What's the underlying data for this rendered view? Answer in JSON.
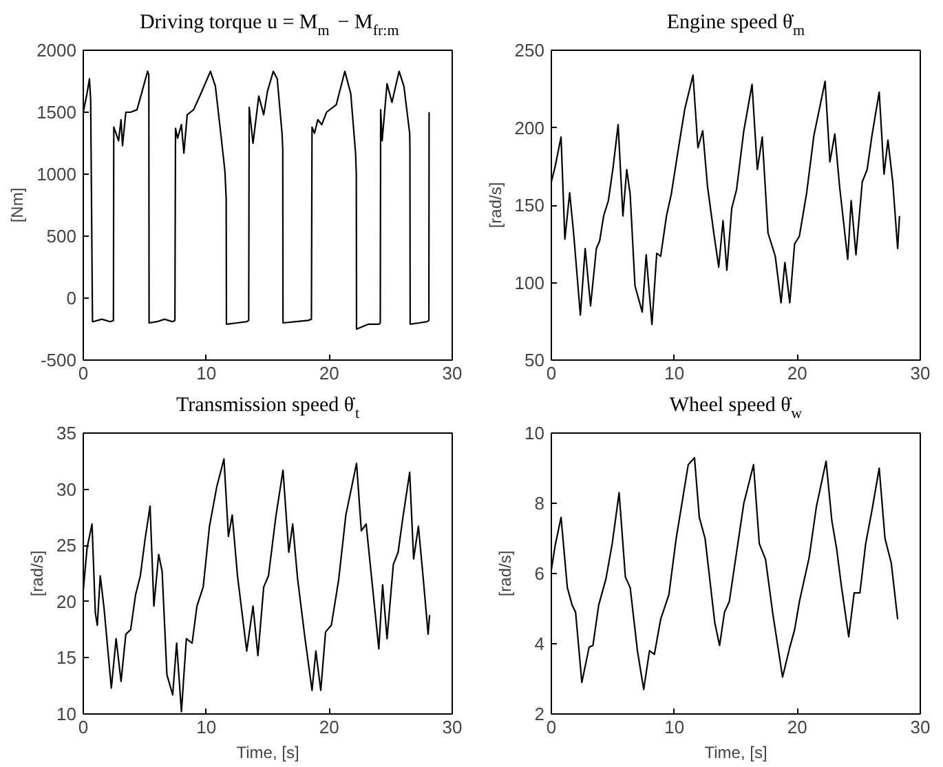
{
  "chart_data": [
    {
      "type": "line",
      "title": "Driving torque u = M$_{m}$ − M$_{fr:m}$",
      "ylabel": "[Nm]",
      "color": "#000000",
      "xlim": [
        0,
        30
      ],
      "ylim": [
        -500,
        2000
      ],
      "xticks": [
        0,
        10,
        20,
        30
      ],
      "yticks": [
        -500,
        0,
        500,
        1000,
        1500,
        2000
      ],
      "x": [
        0,
        0.3,
        0.5,
        0.6,
        0.75,
        0.8,
        1.5,
        2.2,
        2.45,
        2.48,
        2.87,
        3.07,
        3.19,
        3.46,
        3.85,
        4.37,
        5.23,
        5.33,
        5.35,
        6.0,
        6.6,
        7.27,
        7.45,
        7.5,
        7.67,
        7.98,
        8.18,
        8.45,
        8.97,
        9.56,
        10.34,
        10.74,
        11.2,
        11.52,
        11.62,
        11.64,
        12.5,
        13.3,
        13.45,
        13.49,
        13.8,
        14.27,
        14.67,
        14.98,
        15.45,
        15.77,
        16.16,
        16.22,
        16.24,
        17.3,
        18.29,
        18.55,
        18.6,
        18.8,
        19.07,
        19.39,
        19.78,
        20.57,
        21.27,
        21.75,
        22.14,
        22.2,
        22.22,
        23.2,
        24.03,
        24.15,
        24.18,
        24.3,
        24.7,
        25.1,
        25.68,
        26.07,
        26.54,
        26.56,
        26.58,
        27.3,
        27.96,
        28.1,
        28.12
      ],
      "values": [
        1500,
        1650,
        1770,
        1600,
        -190,
        -190,
        -170,
        -190,
        -180,
        1380,
        1270,
        1440,
        1230,
        1500,
        1500,
        1520,
        1830,
        1800,
        -200,
        -190,
        -170,
        -190,
        -180,
        1370,
        1290,
        1400,
        1170,
        1480,
        1520,
        1650,
        1830,
        1710,
        1310,
        1020,
        800,
        -210,
        -200,
        -190,
        -180,
        1540,
        1250,
        1630,
        1480,
        1670,
        1830,
        1770,
        1330,
        1200,
        -200,
        -190,
        -180,
        -170,
        1380,
        1330,
        1440,
        1400,
        1500,
        1560,
        1830,
        1650,
        1170,
        1000,
        -250,
        -210,
        -210,
        -200,
        1520,
        1270,
        1730,
        1580,
        1830,
        1710,
        1330,
        1200,
        -210,
        -200,
        -190,
        -180,
        1500
      ]
    },
    {
      "type": "line",
      "title": "Engine speed θ̇$_{m}$",
      "ylabel": "[rad/s]",
      "color": "#000000",
      "xlim": [
        0,
        30
      ],
      "ylim": [
        50,
        250
      ],
      "xticks": [
        0,
        10,
        20,
        30
      ],
      "yticks": [
        50,
        100,
        150,
        200,
        250
      ],
      "x": [
        0,
        0.31,
        0.79,
        1.1,
        1.49,
        1.81,
        2.36,
        2.75,
        3.19,
        3.66,
        3.93,
        4.25,
        4.64,
        5.03,
        5.43,
        5.82,
        6.13,
        6.41,
        6.8,
        7.39,
        7.71,
        8.18,
        8.57,
        8.89,
        9.36,
        9.75,
        10.34,
        10.85,
        11.52,
        11.92,
        12.31,
        12.7,
        13.21,
        13.61,
        13.96,
        14.27,
        14.67,
        15.06,
        15.65,
        16.32,
        16.75,
        17.15,
        17.62,
        18.21,
        18.68,
        18.99,
        19.39,
        19.78,
        20.17,
        20.76,
        21.35,
        22.26,
        22.65,
        23.05,
        23.44,
        24.1,
        24.38,
        24.77,
        25.28,
        25.68,
        26.07,
        26.66,
        27.05,
        27.37,
        27.76,
        28.16,
        28.31
      ],
      "values": [
        165,
        175,
        194,
        128,
        158,
        132,
        79,
        122,
        85,
        122,
        127,
        143,
        153,
        175,
        202,
        143,
        173,
        157,
        98,
        81,
        118,
        73,
        119,
        117,
        143,
        157,
        187,
        212,
        234,
        187,
        198,
        162,
        132,
        110,
        140,
        108,
        148,
        160,
        198,
        228,
        173,
        194,
        132,
        117,
        87,
        113,
        87,
        125,
        130,
        158,
        195,
        230,
        178,
        196,
        162,
        115,
        153,
        118,
        165,
        173,
        195,
        223,
        170,
        192,
        165,
        122,
        143
      ]
    },
    {
      "type": "line",
      "title": "Transmission speed θ̇$_{t}$",
      "ylabel": "[rad/s]",
      "xlabel": "Time, [s]",
      "color": "#000000",
      "xlim": [
        0,
        30
      ],
      "ylim": [
        10,
        35
      ],
      "xticks": [
        0,
        10,
        20,
        30
      ],
      "yticks": [
        10,
        15,
        20,
        25,
        30,
        35
      ],
      "x": [
        0,
        0.31,
        0.71,
        0.98,
        1.14,
        1.38,
        1.69,
        2.28,
        2.67,
        3.07,
        3.46,
        3.85,
        4.25,
        4.64,
        5.03,
        5.43,
        5.74,
        6.13,
        6.41,
        6.8,
        7.27,
        7.59,
        7.98,
        8.38,
        8.85,
        9.24,
        9.75,
        10.26,
        10.85,
        11.44,
        11.8,
        12.11,
        12.54,
        13.29,
        13.8,
        14.2,
        14.67,
        15.06,
        15.65,
        16.24,
        16.71,
        17.03,
        17.42,
        18.01,
        18.6,
        18.91,
        19.31,
        19.7,
        20.17,
        20.76,
        21.35,
        22.22,
        22.61,
        23.0,
        23.52,
        24.03,
        24.34,
        24.7,
        25.21,
        25.6,
        25.99,
        26.54,
        26.86,
        27.25,
        27.64,
        28.04,
        28.16
      ],
      "values": [
        21.0,
        24.8,
        26.9,
        19.0,
        17.9,
        22.3,
        19.4,
        12.3,
        16.7,
        12.9,
        17.1,
        17.5,
        20.6,
        22.3,
        25.6,
        28.5,
        19.6,
        24.2,
        22.7,
        13.5,
        11.7,
        16.3,
        10.2,
        16.7,
        16.3,
        19.6,
        21.3,
        26.7,
        30.2,
        32.7,
        25.8,
        27.7,
        22.3,
        15.6,
        19.6,
        15.2,
        21.3,
        22.3,
        27.5,
        31.7,
        24.4,
        26.9,
        22.1,
        16.9,
        12.1,
        15.6,
        12.1,
        17.3,
        17.9,
        21.9,
        27.7,
        32.3,
        26.3,
        26.9,
        21.3,
        15.8,
        21.5,
        16.7,
        23.3,
        24.4,
        27.5,
        31.5,
        23.8,
        26.7,
        22.1,
        17.1,
        18.8
      ]
    },
    {
      "type": "line",
      "title": "Wheel speed θ̇$_{w}$",
      "ylabel": "[rad/s]",
      "xlabel": "Time, [s]",
      "color": "#000000",
      "xlim": [
        0,
        30
      ],
      "ylim": [
        2,
        10
      ],
      "xticks": [
        0,
        10,
        20,
        30
      ],
      "yticks": [
        2,
        4,
        6,
        8,
        10
      ],
      "x": [
        0,
        0.31,
        0.79,
        1.3,
        1.69,
        1.97,
        2.48,
        3.07,
        3.38,
        3.85,
        4.44,
        4.95,
        5.51,
        6.02,
        6.41,
        7.0,
        7.51,
        7.98,
        8.38,
        8.89,
        9.56,
        10.15,
        10.62,
        11.13,
        11.64,
        12.03,
        12.5,
        13.29,
        13.68,
        14.08,
        14.47,
        15.06,
        15.65,
        16.44,
        16.91,
        17.42,
        18.01,
        18.8,
        19.39,
        19.78,
        20.17,
        20.96,
        21.55,
        22.34,
        22.81,
        23.2,
        23.6,
        24.18,
        24.62,
        25.09,
        25.56,
        26.07,
        26.66,
        27.13,
        27.64,
        28.16
      ],
      "values": [
        6.1,
        6.8,
        7.6,
        5.6,
        5.1,
        4.9,
        2.9,
        3.9,
        3.95,
        5.1,
        5.85,
        6.85,
        8.3,
        5.9,
        5.6,
        3.8,
        2.7,
        3.8,
        3.7,
        4.7,
        5.4,
        7.0,
        8.0,
        9.1,
        9.3,
        7.6,
        7.0,
        4.6,
        3.95,
        4.9,
        5.2,
        6.6,
        8.0,
        9.1,
        6.85,
        6.4,
        4.85,
        3.05,
        3.9,
        4.4,
        5.2,
        6.45,
        7.9,
        9.2,
        7.5,
        6.7,
        5.6,
        4.2,
        5.45,
        5.45,
        6.85,
        7.8,
        9.0,
        7.0,
        6.3,
        4.7
      ]
    }
  ]
}
